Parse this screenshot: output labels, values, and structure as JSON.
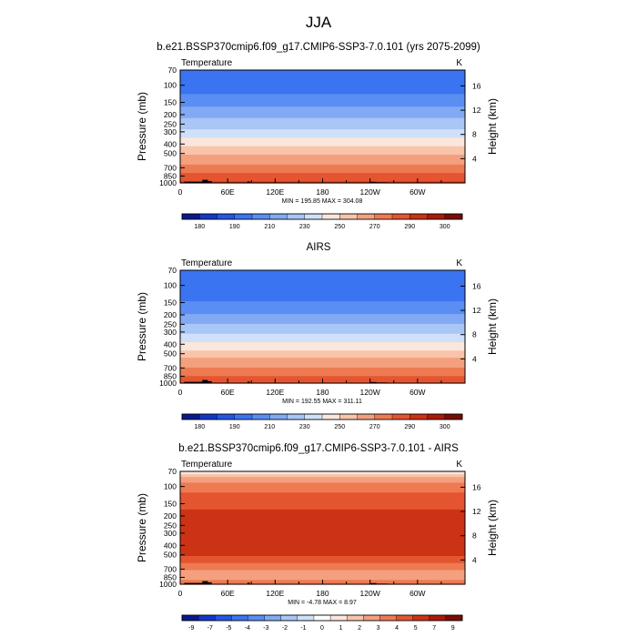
{
  "figure_title": "JJA",
  "colors": {
    "temp_levels": [
      "#0a1a8c",
      "#1238c8",
      "#2456e6",
      "#3a74f0",
      "#5a8ef2",
      "#82aaf4",
      "#a8c6f6",
      "#cfe0f8",
      "#fbe6dc",
      "#f8c4aa",
      "#f4a07e",
      "#ee7a52",
      "#e45530",
      "#cc3314",
      "#aa1a08",
      "#7a0c04"
    ],
    "diff_levels": [
      "#0a1a8c",
      "#1238c8",
      "#2456e6",
      "#3a74f0",
      "#5a8ef2",
      "#82aaf4",
      "#a8c6f6",
      "#cfe0f8",
      "#ffffff",
      "#fbe6dc",
      "#f8c4aa",
      "#f4a07e",
      "#ee7a52",
      "#e45530",
      "#cc3314",
      "#aa1a08",
      "#7a0c04"
    ],
    "topography": "#000000"
  },
  "chart_data": [
    {
      "type": "heatmap",
      "title": "b.e21.BSSP370cmip6.f09_g17.CMIP6-SSP3-7.0.101 (yrs 2075-2099)",
      "left_label": "Temperature",
      "units": "K",
      "ylabel": "Pressure (mb)",
      "ylabel_right": "Height (km)",
      "xticks": [
        "0",
        "60E",
        "120E",
        "180",
        "120W",
        "60W"
      ],
      "xlim": [
        0,
        360
      ],
      "yticks": [
        "70",
        "100",
        "150",
        "200",
        "250",
        "300",
        "400",
        "500",
        "700",
        "850",
        "1000"
      ],
      "ylim": [
        1000,
        70
      ],
      "log_y": true,
      "right_ticks": [
        "16",
        "12",
        "8",
        "4"
      ],
      "stats": "MIN = 195.85  MAX = 304.08",
      "colorbar_labels": [
        "180",
        "190",
        "210",
        "230",
        "250",
        "270",
        "290",
        "300"
      ],
      "profile_by_pressure": [
        [
          70,
          205
        ],
        [
          100,
          198
        ],
        [
          150,
          212
        ],
        [
          200,
          222
        ],
        [
          250,
          230
        ],
        [
          300,
          238
        ],
        [
          400,
          253
        ],
        [
          500,
          264
        ],
        [
          600,
          272
        ],
        [
          700,
          279
        ],
        [
          850,
          288
        ],
        [
          1000,
          296
        ]
      ]
    },
    {
      "type": "heatmap",
      "title": "AIRS",
      "left_label": "Temperature",
      "units": "K",
      "ylabel": "Pressure (mb)",
      "ylabel_right": "Height (km)",
      "xticks": [
        "0",
        "60E",
        "120E",
        "180",
        "120W",
        "60W"
      ],
      "xlim": [
        0,
        360
      ],
      "yticks": [
        "70",
        "100",
        "150",
        "200",
        "250",
        "300",
        "400",
        "500",
        "700",
        "850",
        "1000"
      ],
      "ylim": [
        1000,
        70
      ],
      "log_y": true,
      "right_ticks": [
        "16",
        "12",
        "8",
        "4"
      ],
      "stats": "MIN = 192.55  MAX = 311.11",
      "colorbar_labels": [
        "180",
        "190",
        "210",
        "230",
        "250",
        "270",
        "290",
        "300"
      ],
      "profile_by_pressure": [
        [
          70,
          203
        ],
        [
          100,
          195
        ],
        [
          150,
          206
        ],
        [
          200,
          216
        ],
        [
          250,
          225
        ],
        [
          300,
          233
        ],
        [
          400,
          248
        ],
        [
          500,
          260
        ],
        [
          600,
          269
        ],
        [
          700,
          276
        ],
        [
          850,
          285
        ],
        [
          1000,
          294
        ]
      ]
    },
    {
      "type": "heatmap",
      "title": "b.e21.BSSP370cmip6.f09_g17.CMIP6-SSP3-7.0.101 - AIRS",
      "left_label": "Temperature",
      "units": "K",
      "ylabel": "Pressure (mb)",
      "ylabel_right": "Height (km)",
      "xticks": [
        "0",
        "60E",
        "120E",
        "180",
        "120W",
        "60W"
      ],
      "xlim": [
        0,
        360
      ],
      "yticks": [
        "70",
        "100",
        "150",
        "200",
        "250",
        "300",
        "400",
        "500",
        "700",
        "850",
        "1000"
      ],
      "ylim": [
        1000,
        70
      ],
      "log_y": true,
      "right_ticks": [
        "16",
        "12",
        "8",
        "4"
      ],
      "stats": "MIN =  -4.78  MAX =   8.97",
      "colorbar_labels": [
        "-9",
        "-7",
        "-5",
        "-4",
        "-3",
        "-2",
        "-1",
        "0",
        "1",
        "2",
        "3",
        "4",
        "5",
        "7",
        "9"
      ],
      "profile_by_pressure": [
        [
          70,
          0.5
        ],
        [
          85,
          2.5
        ],
        [
          100,
          3.5
        ],
        [
          130,
          4.5
        ],
        [
          170,
          5.0
        ],
        [
          200,
          6.0
        ],
        [
          300,
          6.2
        ],
        [
          400,
          6.0
        ],
        [
          480,
          5.5
        ],
        [
          560,
          4.5
        ],
        [
          650,
          3.5
        ],
        [
          720,
          3.0
        ],
        [
          800,
          2.5
        ],
        [
          900,
          3.0
        ],
        [
          1000,
          3.5
        ]
      ]
    }
  ]
}
